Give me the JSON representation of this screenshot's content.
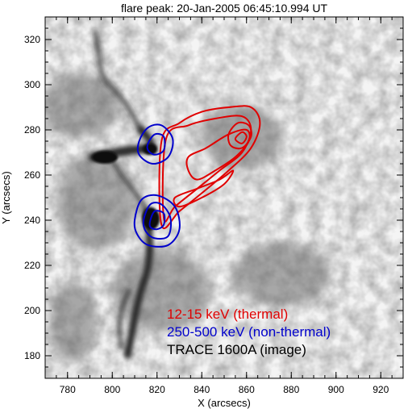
{
  "chart_data": {
    "type": "heatmap",
    "title": "flare peak:  20-Jan-2005 06:45:10.994 UT",
    "xlabel": "X (arcsecs)",
    "ylabel": "Y (arcsecs)",
    "xlim": [
      770,
      930
    ],
    "ylim": [
      170,
      330
    ],
    "x_ticks": [
      780,
      800,
      820,
      840,
      860,
      880,
      900,
      920
    ],
    "y_ticks": [
      180,
      200,
      220,
      240,
      260,
      280,
      300,
      320
    ],
    "grid": false,
    "legend_position": "bottom-right",
    "series": [
      {
        "name": "12-15 keV (thermal)",
        "kind": "contour",
        "color": "#e00000",
        "contours": [
          [
            [
              822,
              275
            ],
            [
              830,
              283
            ],
            [
              840,
              288
            ],
            [
              852,
              290
            ],
            [
              862,
              290
            ],
            [
              866,
              283
            ],
            [
              862,
              272
            ],
            [
              852,
              262
            ],
            [
              840,
              252
            ],
            [
              830,
              244
            ],
            [
              822,
              238
            ]
          ],
          [
            [
              824,
              276
            ],
            [
              834,
              282
            ],
            [
              846,
              285
            ],
            [
              858,
              286
            ],
            [
              862,
              280
            ],
            [
              858,
              270
            ],
            [
              848,
              262
            ],
            [
              838,
              254
            ],
            [
              828,
              246
            ],
            [
              823,
              241
            ]
          ],
          [
            [
              834,
              268
            ],
            [
              842,
              272
            ],
            [
              852,
              278
            ],
            [
              860,
              280
            ],
            [
              861,
              275
            ],
            [
              855,
              268
            ],
            [
              846,
              262
            ],
            [
              838,
              258
            ],
            [
              834,
              262
            ]
          ],
          [
            [
              852,
              278
            ],
            [
              856,
              283
            ],
            [
              861,
              282
            ],
            [
              862,
              277
            ],
            [
              858,
              272
            ],
            [
              853,
              273
            ]
          ],
          [
            [
              855,
              276
            ],
            [
              858,
              279
            ],
            [
              860,
              277
            ],
            [
              858,
              274
            ]
          ],
          [
            [
              828,
              250
            ],
            [
              838,
              254
            ],
            [
              848,
              258
            ],
            [
              854,
              262
            ],
            [
              850,
              256
            ],
            [
              840,
              250
            ],
            [
              830,
              246
            ]
          ]
        ]
      },
      {
        "name": "250-500 keV (non-thermal)",
        "kind": "contour",
        "color": "#0000cc",
        "contours": [
          [
            [
              812,
              275
            ],
            [
              816,
              281
            ],
            [
              822,
              282
            ],
            [
              827,
              276
            ],
            [
              825,
              268
            ],
            [
              818,
              265
            ],
            [
              812,
              269
            ]
          ],
          [
            [
              816,
              274
            ],
            [
              819,
              278
            ],
            [
              823,
              277
            ],
            [
              823,
              271
            ],
            [
              819,
              269
            ],
            [
              816,
              271
            ]
          ],
          [
            [
              810,
              240
            ],
            [
              813,
              249
            ],
            [
              820,
              251
            ],
            [
              828,
              246
            ],
            [
              830,
              236
            ],
            [
              825,
              229
            ],
            [
              816,
              229
            ],
            [
              811,
              234
            ]
          ],
          [
            [
              814,
              240
            ],
            [
              817,
              247
            ],
            [
              822,
              247
            ],
            [
              826,
              241
            ],
            [
              825,
              233
            ],
            [
              819,
              232
            ],
            [
              815,
              235
            ]
          ],
          [
            [
              817,
              240
            ],
            [
              819,
              244
            ],
            [
              823,
              243
            ],
            [
              823,
              238
            ],
            [
              820,
              236
            ],
            [
              817,
              237
            ]
          ]
        ]
      },
      {
        "name": "TRACE 1600A (image)",
        "kind": "image",
        "color": "#000000"
      }
    ]
  }
}
